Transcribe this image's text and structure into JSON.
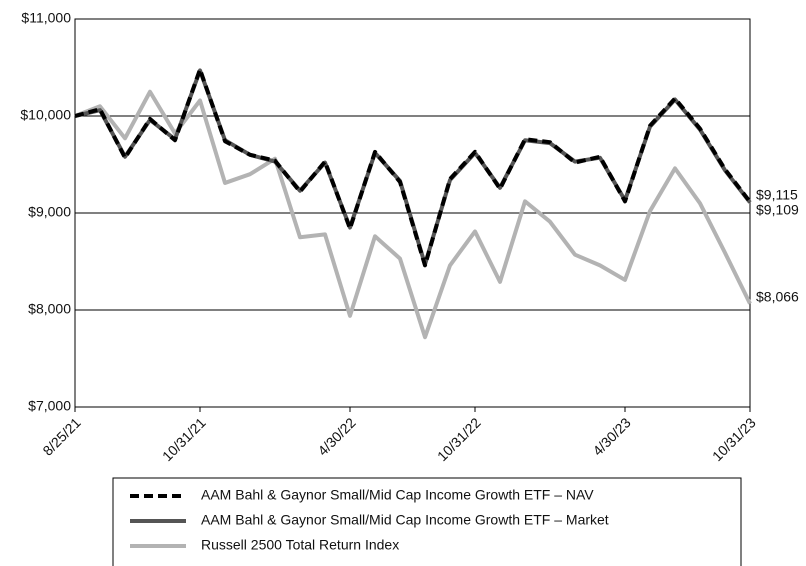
{
  "chart_data": {
    "type": "line",
    "categories": [
      "8/25/21",
      null,
      null,
      null,
      null,
      "10/31/21",
      null,
      null,
      null,
      null,
      null,
      "4/30/22",
      null,
      null,
      null,
      null,
      "10/31/22",
      null,
      null,
      null,
      null,
      null,
      "4/30/23",
      null,
      null,
      null,
      null,
      "10/31/23"
    ],
    "series": [
      {
        "name": "AAM Bahl & Gaynor Small/Mid Cap Income Growth ETF – NAV",
        "color": "#000000",
        "dash": true,
        "end_label": "$9,115",
        "values": [
          10000,
          10070,
          9570,
          9970,
          9750,
          10480,
          9740,
          9600,
          9540,
          9220,
          9530,
          8840,
          9630,
          9320,
          8460,
          9350,
          9630,
          9250,
          9760,
          9730,
          9520,
          9580,
          9120,
          9900,
          10180,
          9870,
          9450,
          9115
        ]
      },
      {
        "name": "AAM Bahl & Gaynor Small/Mid Cap Income Growth ETF – Market",
        "color": "#555555",
        "dash": false,
        "end_label": "$9,109",
        "values": [
          10000,
          10060,
          9580,
          9960,
          9760,
          10470,
          9750,
          9600,
          9530,
          9230,
          9520,
          8850,
          9620,
          9330,
          8470,
          9340,
          9620,
          9260,
          9750,
          9720,
          9530,
          9570,
          9130,
          9890,
          10170,
          9860,
          9440,
          9109
        ]
      },
      {
        "name": "Russell 2500 Total Return Index",
        "color": "#b3b3b3",
        "dash": false,
        "end_label": "$8,066",
        "values": [
          10000,
          10100,
          9770,
          10250,
          9820,
          10160,
          9310,
          9400,
          9560,
          8750,
          8780,
          7940,
          8760,
          8530,
          7720,
          8460,
          8810,
          8290,
          9120,
          8910,
          8570,
          8460,
          8310,
          9020,
          9460,
          9100,
          8590,
          8066
        ]
      }
    ],
    "ylim": [
      7000,
      11000
    ],
    "yticks": [
      {
        "value": 7000,
        "label": "$7,000"
      },
      {
        "value": 8000,
        "label": "$8,000"
      },
      {
        "value": 9000,
        "label": "$9,000"
      },
      {
        "value": 10000,
        "label": "$10,000"
      },
      {
        "value": 11000,
        "label": "$11,000"
      }
    ],
    "grid": true
  }
}
